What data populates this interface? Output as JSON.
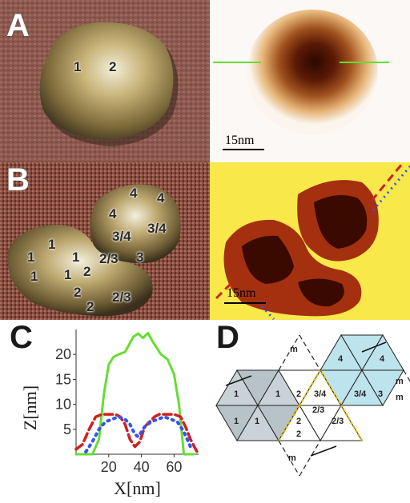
{
  "labels": {
    "a": "A",
    "b": "B",
    "c": "C",
    "d": "D"
  },
  "panelA_marks": [
    "1",
    "2"
  ],
  "panelB_marks": [
    "4",
    "4",
    "4",
    "3/4",
    "3/4",
    "1",
    "1",
    "1",
    "2/3",
    "3",
    "1",
    "1",
    "2",
    "2",
    "2",
    "2/3"
  ],
  "scalebars": {
    "a": "15nm",
    "b": "15nm"
  },
  "colors": {
    "green": "#66dd33",
    "red": "#d02020",
    "blue": "#3355ee"
  },
  "chart_data": {
    "type": "line",
    "xlabel": "X[nm]",
    "ylabel": "Z[nm]",
    "xlim": [
      0,
      75
    ],
    "ylim": [
      0,
      25
    ],
    "xticks": [
      20,
      40,
      60
    ],
    "yticks": [
      5,
      10,
      15,
      20
    ],
    "series": [
      {
        "color": "green",
        "style": "solid",
        "x": [
          0,
          10,
          14,
          17,
          20,
          23,
          26,
          30,
          35,
          38,
          41,
          44,
          47,
          52,
          56,
          60,
          63,
          66,
          72
        ],
        "y": [
          0,
          0,
          3,
          12,
          18,
          19.5,
          20,
          20.5,
          23.5,
          24.2,
          23.3,
          24.3,
          22.5,
          20,
          19,
          16,
          10,
          0,
          0
        ]
      },
      {
        "color": "red",
        "style": "dashed",
        "x": [
          0,
          4,
          8,
          12,
          16,
          20,
          24,
          27,
          30,
          33,
          36,
          39,
          42,
          45,
          48,
          51,
          55,
          60,
          64,
          67,
          70,
          74
        ],
        "y": [
          1,
          2,
          5,
          7.5,
          8,
          8,
          8,
          7.5,
          6,
          3,
          1.5,
          2.5,
          5.5,
          6.5,
          7.5,
          8,
          8,
          8,
          7.5,
          5.5,
          3,
          0.5
        ]
      },
      {
        "color": "blue",
        "style": "dotted",
        "x": [
          6,
          10,
          14,
          18,
          22,
          26,
          30,
          33,
          36,
          38,
          42,
          46,
          50,
          54,
          58,
          62,
          66,
          70
        ],
        "y": [
          0.5,
          2.5,
          5,
          6.5,
          7,
          7.5,
          7,
          6,
          4,
          3.5,
          5.5,
          6.5,
          7,
          7.5,
          7,
          6.5,
          4.5,
          1.5
        ]
      }
    ]
  },
  "net": {
    "triangles": [
      "1",
      "1",
      "1",
      "1",
      "2",
      "2",
      "2/3",
      "2/3",
      "3/4",
      "3/4",
      "4",
      "4",
      "3",
      "2"
    ],
    "m_labels": [
      "m",
      "m",
      "m",
      "m"
    ]
  }
}
